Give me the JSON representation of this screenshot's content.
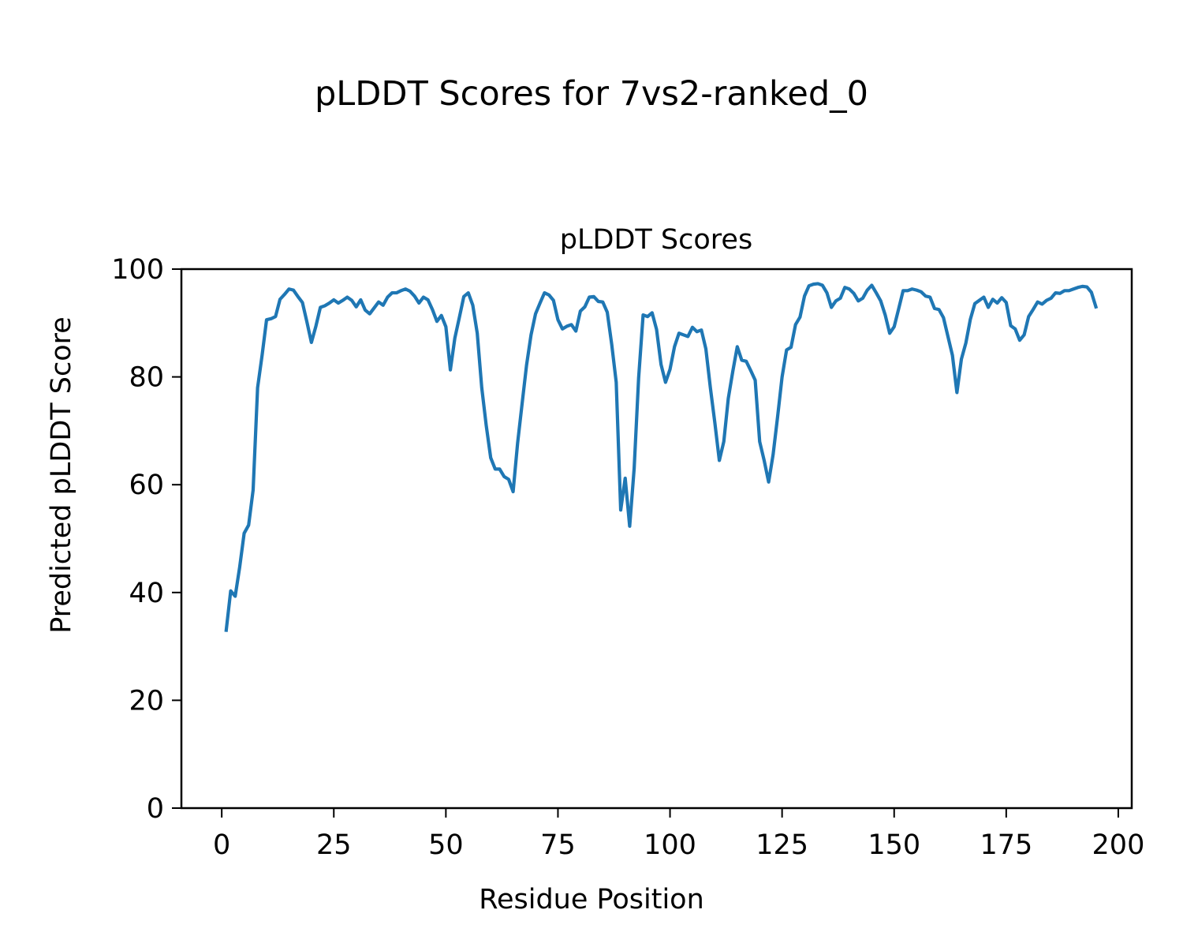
{
  "figure": {
    "suptitle": "pLDDT Scores for 7vs2-ranked_0"
  },
  "chart_data": {
    "type": "line",
    "title": "pLDDT Scores",
    "xlabel": "Residue Position",
    "ylabel": "Predicted pLDDT Score",
    "xlim": [
      -9,
      203
    ],
    "ylim": [
      0,
      100
    ],
    "xticks": [
      0,
      25,
      50,
      75,
      100,
      125,
      150,
      175,
      200
    ],
    "yticks": [
      0,
      20,
      40,
      60,
      80,
      100
    ],
    "grid": false,
    "series": [
      {
        "color": "#1f77b4",
        "x_start": 1,
        "values": [
          33.0,
          40.3,
          39.3,
          44.7,
          51.0,
          52.5,
          59.0,
          78.0,
          84.0,
          90.6,
          90.8,
          91.2,
          94.4,
          95.3,
          96.3,
          96.1,
          94.9,
          93.8,
          90.2,
          86.4,
          89.4,
          92.9,
          93.2,
          93.7,
          94.3,
          93.7,
          94.2,
          94.8,
          94.2,
          93.0,
          94.3,
          92.4,
          91.7,
          92.8,
          93.9,
          93.3,
          94.8,
          95.6,
          95.6,
          96.0,
          96.3,
          95.9,
          95.0,
          93.7,
          94.8,
          94.3,
          92.5,
          90.3,
          91.4,
          89.3,
          81.3,
          87.2,
          91.0,
          94.9,
          95.6,
          93.3,
          88.1,
          78.0,
          71.0,
          65.0,
          62.9,
          62.9,
          61.5,
          61.0,
          58.7,
          67.7,
          75.0,
          82.2,
          87.8,
          91.7,
          93.7,
          95.6,
          95.2,
          94.2,
          90.6,
          88.9,
          89.4,
          89.7,
          88.5,
          92.2,
          93.0,
          94.8,
          94.9,
          94.0,
          93.9,
          92.0,
          86.0,
          79.0,
          55.3,
          61.2,
          52.3,
          63.0,
          79.8,
          91.5,
          91.2,
          91.9,
          88.8,
          82.3,
          79.0,
          81.4,
          85.6,
          88.1,
          87.8,
          87.5,
          89.2,
          88.4,
          88.7,
          85.2,
          78.0,
          71.5,
          64.5,
          68.0,
          76.0,
          81.0,
          85.6,
          83.1,
          82.9,
          81.2,
          79.4,
          68.0,
          64.5,
          60.5,
          65.6,
          72.6,
          80.0,
          85.0,
          85.5,
          89.7,
          91.1,
          95.0,
          96.9,
          97.2,
          97.3,
          97.0,
          95.6,
          92.9,
          94.1,
          94.6,
          96.6,
          96.3,
          95.5,
          94.1,
          94.6,
          96.1,
          97.0,
          95.6,
          94.1,
          91.5,
          88.1,
          89.3,
          92.6,
          96.0,
          96.0,
          96.3,
          96.1,
          95.8,
          95.0,
          94.8,
          92.7,
          92.5,
          91.0,
          87.5,
          84.0,
          77.1,
          83.3,
          86.3,
          90.7,
          93.6,
          94.2,
          94.8,
          92.9,
          94.4,
          93.7,
          94.7,
          93.8,
          89.5,
          88.9,
          86.8,
          87.8,
          91.2,
          92.5,
          93.9,
          93.5,
          94.2,
          94.6,
          95.6,
          95.5,
          96.0,
          96.0,
          96.3,
          96.6,
          96.8,
          96.7,
          95.7,
          93.0
        ]
      }
    ]
  }
}
